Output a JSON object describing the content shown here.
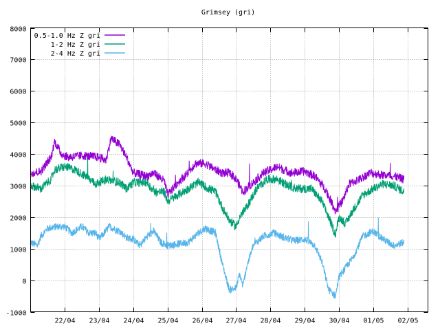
{
  "chart_data": {
    "type": "line",
    "title": "Grimsey (gri)",
    "xlabel": "",
    "ylabel": "",
    "ylim": [
      -1000,
      8000
    ],
    "yticks": [
      -1000,
      0,
      1000,
      2000,
      3000,
      4000,
      5000,
      6000,
      7000,
      8000
    ],
    "xticks": [
      "22/04",
      "23/04",
      "24/04",
      "25/04",
      "26/04",
      "27/04",
      "28/04",
      "29/04",
      "30/04",
      "01/05",
      "02/05"
    ],
    "x_units": "days since start of 21/04",
    "xlim": [
      0,
      11.6
    ],
    "grid": true,
    "legend_position": "top-left",
    "series": [
      {
        "name": "0.5-1.0 Hz Z gri",
        "color": "#9400d3",
        "noise": 140,
        "points": [
          [
            0,
            3400
          ],
          [
            0.3,
            3450
          ],
          [
            0.6,
            3900
          ],
          [
            0.7,
            4400
          ],
          [
            0.9,
            4000
          ],
          [
            1.1,
            3900
          ],
          [
            1.5,
            3950
          ],
          [
            2.0,
            3900
          ],
          [
            2.2,
            3800
          ],
          [
            2.35,
            4500
          ],
          [
            2.6,
            4300
          ],
          [
            2.8,
            3900
          ],
          [
            3.0,
            3400
          ],
          [
            3.4,
            3300
          ],
          [
            3.6,
            3400
          ],
          [
            3.9,
            3150
          ],
          [
            4.0,
            2700
          ],
          [
            4.3,
            3100
          ],
          [
            4.6,
            3400
          ],
          [
            4.8,
            3700
          ],
          [
            5.1,
            3700
          ],
          [
            5.4,
            3500
          ],
          [
            5.6,
            3400
          ],
          [
            5.8,
            3400
          ],
          [
            6.0,
            3200
          ],
          [
            6.2,
            2800
          ],
          [
            6.5,
            3100
          ],
          [
            6.8,
            3400
          ],
          [
            7.2,
            3600
          ],
          [
            7.6,
            3400
          ],
          [
            8.0,
            3450
          ],
          [
            8.3,
            3300
          ],
          [
            8.6,
            2900
          ],
          [
            8.9,
            2200
          ],
          [
            9.1,
            2500
          ],
          [
            9.3,
            3050
          ],
          [
            9.6,
            3200
          ],
          [
            9.9,
            3400
          ],
          [
            10.2,
            3350
          ],
          [
            10.6,
            3300
          ],
          [
            10.9,
            3200
          ]
        ]
      },
      {
        "name": "1-2 Hz Z gri",
        "color": "#009e73",
        "noise": 140,
        "points": [
          [
            0,
            3000
          ],
          [
            0.3,
            2900
          ],
          [
            0.6,
            3200
          ],
          [
            0.7,
            3500
          ],
          [
            1.0,
            3600
          ],
          [
            1.3,
            3500
          ],
          [
            1.6,
            3300
          ],
          [
            1.9,
            3050
          ],
          [
            2.2,
            3200
          ],
          [
            2.6,
            3100
          ],
          [
            2.8,
            2900
          ],
          [
            3.0,
            3100
          ],
          [
            3.4,
            3100
          ],
          [
            3.6,
            2800
          ],
          [
            3.9,
            2800
          ],
          [
            4.0,
            2500
          ],
          [
            4.3,
            2700
          ],
          [
            4.6,
            2900
          ],
          [
            4.9,
            3100
          ],
          [
            5.2,
            2900
          ],
          [
            5.4,
            2800
          ],
          [
            5.6,
            2300
          ],
          [
            5.8,
            1900
          ],
          [
            6.0,
            1700
          ],
          [
            6.1,
            2000
          ],
          [
            6.3,
            2300
          ],
          [
            6.6,
            2900
          ],
          [
            6.9,
            3200
          ],
          [
            7.2,
            3200
          ],
          [
            7.5,
            3000
          ],
          [
            7.8,
            2900
          ],
          [
            8.2,
            2900
          ],
          [
            8.5,
            2500
          ],
          [
            8.7,
            2000
          ],
          [
            8.9,
            1450
          ],
          [
            9.0,
            2000
          ],
          [
            9.2,
            1800
          ],
          [
            9.4,
            2200
          ],
          [
            9.7,
            2700
          ],
          [
            10.0,
            2900
          ],
          [
            10.3,
            3050
          ],
          [
            10.6,
            3000
          ],
          [
            10.9,
            2800
          ]
        ]
      },
      {
        "name": "2-4 Hz Z gri",
        "color": "#56b4e9",
        "noise": 120,
        "points": [
          [
            0,
            1200
          ],
          [
            0.2,
            1100
          ],
          [
            0.3,
            1400
          ],
          [
            0.5,
            1650
          ],
          [
            0.8,
            1700
          ],
          [
            1.0,
            1700
          ],
          [
            1.2,
            1500
          ],
          [
            1.5,
            1700
          ],
          [
            1.7,
            1500
          ],
          [
            1.9,
            1500
          ],
          [
            2.0,
            1300
          ],
          [
            2.3,
            1700
          ],
          [
            2.6,
            1550
          ],
          [
            2.8,
            1350
          ],
          [
            3.0,
            1300
          ],
          [
            3.2,
            1100
          ],
          [
            3.4,
            1400
          ],
          [
            3.6,
            1550
          ],
          [
            3.8,
            1200
          ],
          [
            4.0,
            1100
          ],
          [
            4.3,
            1150
          ],
          [
            4.6,
            1200
          ],
          [
            4.9,
            1500
          ],
          [
            5.1,
            1650
          ],
          [
            5.4,
            1500
          ],
          [
            5.6,
            500
          ],
          [
            5.8,
            -300
          ],
          [
            6.0,
            -250
          ],
          [
            6.1,
            200
          ],
          [
            6.2,
            -200
          ],
          [
            6.3,
            400
          ],
          [
            6.5,
            1100
          ],
          [
            6.8,
            1400
          ],
          [
            7.1,
            1500
          ],
          [
            7.4,
            1350
          ],
          [
            7.7,
            1250
          ],
          [
            8.0,
            1300
          ],
          [
            8.3,
            1100
          ],
          [
            8.5,
            600
          ],
          [
            8.7,
            -300
          ],
          [
            8.9,
            -500
          ],
          [
            9.0,
            100
          ],
          [
            9.2,
            400
          ],
          [
            9.4,
            700
          ],
          [
            9.7,
            1400
          ],
          [
            10.0,
            1550
          ],
          [
            10.3,
            1300
          ],
          [
            10.6,
            1100
          ],
          [
            10.9,
            1200
          ]
        ]
      }
    ]
  }
}
